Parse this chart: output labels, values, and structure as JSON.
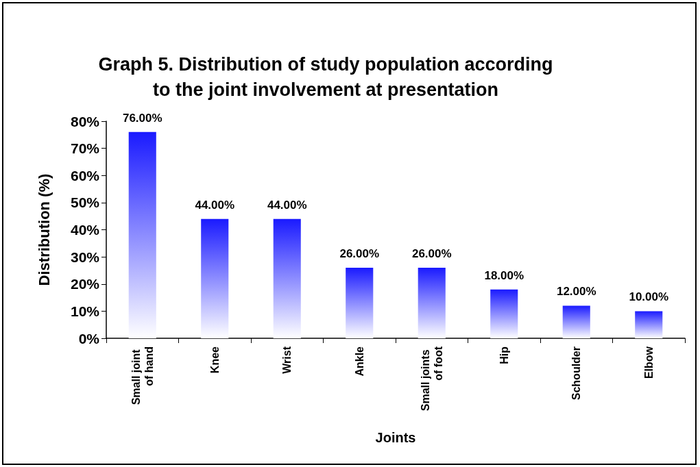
{
  "chart_data": {
    "type": "bar",
    "title": "Graph 5. Distribution of study population according\nto the joint involvement at presentation",
    "xlabel": "Joints",
    "ylabel": "Distribution (%)",
    "categories": [
      "Small joint of hand",
      "Knee",
      "Wrist",
      "Ankle",
      "Small joints of foot",
      "Hip",
      "Schoulder",
      "Elbow"
    ],
    "values": [
      76,
      44,
      44,
      26,
      26,
      18,
      12,
      10
    ],
    "value_labels": [
      "76.00%",
      "44.00%",
      "44.00%",
      "26.00%",
      "26.00%",
      "18.00%",
      "12.00%",
      "10.00%"
    ],
    "color": "#1a1aff",
    "ylim": [
      0,
      80
    ],
    "yticks": [
      {
        "value": 0,
        "label": "0%"
      },
      {
        "value": 10,
        "label": "10%"
      },
      {
        "value": 20,
        "label": "20%"
      },
      {
        "value": 30,
        "label": "30%"
      },
      {
        "value": 40,
        "label": "40%"
      },
      {
        "value": 50,
        "label": "50%"
      },
      {
        "value": 60,
        "label": "60%"
      },
      {
        "value": 70,
        "label": "70%"
      },
      {
        "value": 80,
        "label": "80%"
      }
    ],
    "grid": false
  }
}
